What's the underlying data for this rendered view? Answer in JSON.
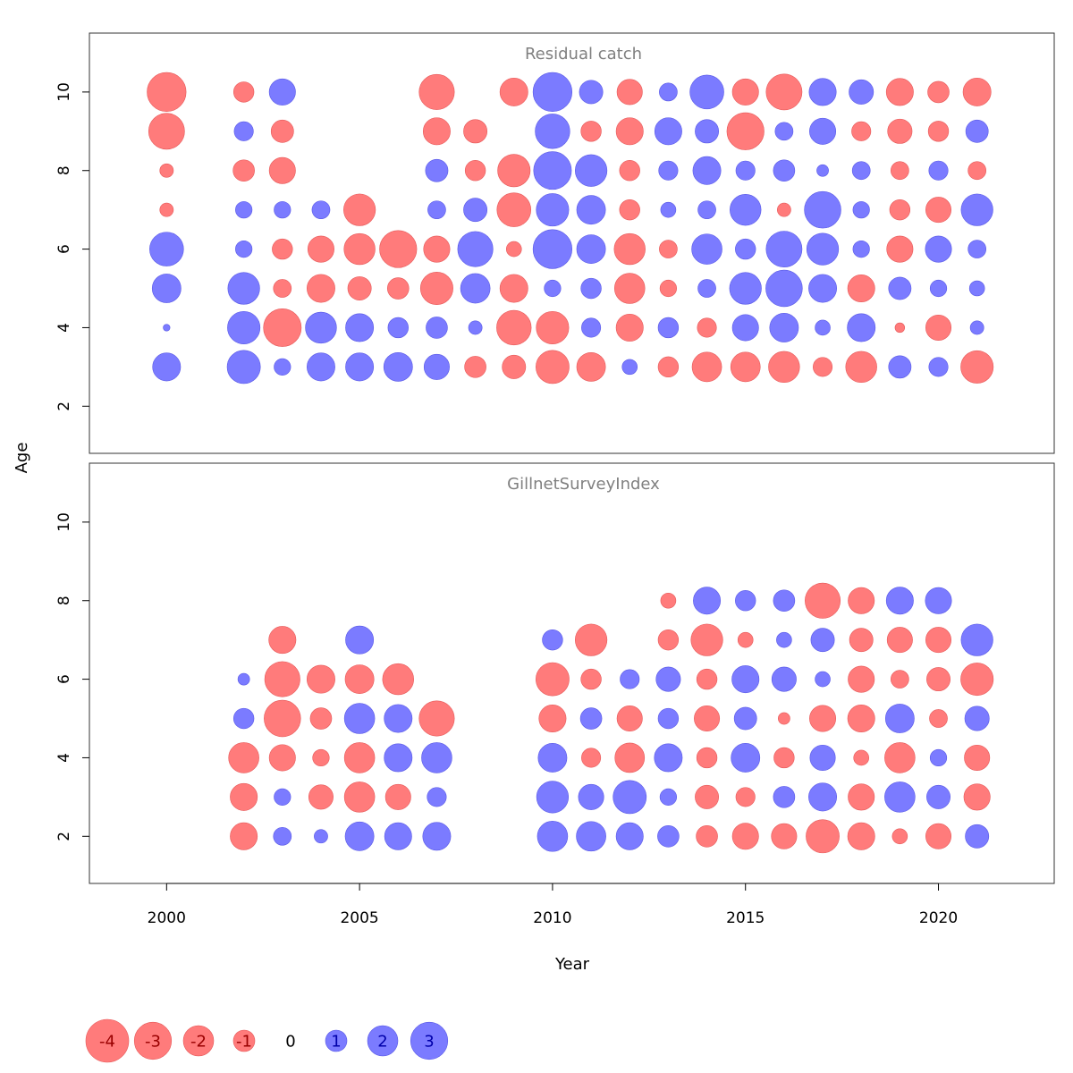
{
  "chart_data": {
    "type": "scatter",
    "variant": "bubble",
    "xlabel": "Year",
    "ylabel": "Age",
    "xlim": [
      1998,
      2023
    ],
    "ylim": [
      0.8,
      11.5
    ],
    "x_ticks": [
      2000,
      2005,
      2010,
      2015,
      2020
    ],
    "y_ticks": [
      2,
      4,
      6,
      8,
      10
    ],
    "colors": {
      "positive": "#7b7bff",
      "negative": "#ff7b7b"
    },
    "legend": {
      "placement": "bottom-left",
      "values": [
        -4,
        -3,
        -2,
        -1,
        0,
        1,
        2,
        3
      ],
      "labels": [
        "-4",
        "-3",
        "-2",
        "-1",
        "0",
        "1",
        "2",
        "3"
      ]
    },
    "panels": [
      {
        "title": "Residual catch",
        "ages": [
          10,
          9,
          8,
          7,
          6,
          5,
          4,
          3
        ],
        "years": [
          2000,
          2002,
          2003,
          2004,
          2005,
          2006,
          2007,
          2008,
          2009,
          2010,
          2011,
          2012,
          2013,
          2014,
          2015,
          2016,
          2017,
          2018,
          2019,
          2020,
          2021
        ],
        "residuals": [
          [
            -3.3,
            -0.9,
            1.5,
            null,
            null,
            null,
            -2.7,
            null,
            -1.7,
            3.3,
            1.2,
            -1.4,
            0.7,
            2.5,
            -1.5,
            -2.8,
            1.6,
            1.3,
            -1.6,
            -1.0,
            -1.7
          ],
          [
            -2.8,
            0.8,
            -1.1,
            null,
            null,
            null,
            -1.6,
            -1.2,
            null,
            2.6,
            -0.9,
            -1.6,
            1.6,
            1.2,
            -3.0,
            0.7,
            1.5,
            -0.8,
            -1.3,
            -0.9,
            1.1
          ],
          [
            -0.4,
            -1.0,
            -1.5,
            null,
            null,
            null,
            1.1,
            -0.9,
            -2.3,
            3.1,
            2.2,
            -0.9,
            0.8,
            1.7,
            0.8,
            1.0,
            0.3,
            0.7,
            -0.7,
            0.8,
            -0.7
          ],
          [
            -0.4,
            0.6,
            0.6,
            0.7,
            -2.2,
            null,
            0.7,
            1.2,
            -2.5,
            2.3,
            1.8,
            -0.9,
            0.5,
            0.7,
            2.1,
            -0.4,
            2.9,
            0.6,
            -0.9,
            -1.4,
            2.2
          ],
          [
            2.5,
            0.6,
            -0.9,
            -1.5,
            -2.1,
            -3.0,
            -1.5,
            2.7,
            -0.5,
            3.3,
            1.8,
            -2.1,
            -0.7,
            2.0,
            0.9,
            2.8,
            2.2,
            0.6,
            -1.5,
            1.5,
            0.7
          ],
          [
            1.8,
            2.2,
            -0.7,
            -1.7,
            -1.2,
            -1.0,
            -2.3,
            1.9,
            -1.7,
            0.6,
            0.9,
            -2.0,
            -0.6,
            0.7,
            2.2,
            2.9,
            1.7,
            -1.6,
            1.1,
            0.6,
            0.5
          ],
          [
            0.1,
            2.3,
            -3.1,
            2.1,
            1.7,
            0.9,
            1.0,
            0.4,
            -2.6,
            -2.3,
            0.8,
            -1.6,
            0.9,
            -0.8,
            1.5,
            1.8,
            0.5,
            1.7,
            -0.2,
            -1.4,
            0.4
          ],
          [
            1.7,
            2.4,
            0.6,
            1.7,
            1.7,
            1.8,
            1.4,
            -1.0,
            -1.2,
            -2.4,
            -1.8,
            0.5,
            -0.9,
            -1.9,
            -1.9,
            -2.1,
            -0.8,
            -2.1,
            1.1,
            0.8,
            -2.3
          ]
        ]
      },
      {
        "title": "GillnetSurveyIndex",
        "ages": [
          8,
          7,
          6,
          5,
          4,
          3,
          2
        ],
        "years": [
          2002,
          2003,
          2004,
          2005,
          2006,
          2007,
          2010,
          2011,
          2012,
          2013,
          2014,
          2015,
          2016,
          2017,
          2018,
          2019,
          2020,
          2021
        ],
        "residuals": [
          [
            null,
            null,
            null,
            null,
            null,
            null,
            null,
            null,
            null,
            -0.5,
            1.6,
            0.9,
            1.0,
            -2.7,
            -1.5,
            1.6,
            1.5,
            null
          ],
          [
            null,
            -1.6,
            null,
            1.7,
            null,
            null,
            0.9,
            -2.2,
            null,
            -0.9,
            -2.2,
            -0.5,
            0.5,
            1.2,
            -1.2,
            -1.4,
            -1.4,
            2.2
          ],
          [
            0.3,
            -2.7,
            -1.7,
            -1.8,
            -2.1,
            null,
            -2.4,
            -0.9,
            0.8,
            1.3,
            -0.9,
            1.6,
            1.3,
            0.5,
            -1.5,
            -0.7,
            -1.2,
            -2.3
          ],
          [
            0.9,
            -2.9,
            -1.0,
            2.0,
            1.7,
            -2.7,
            -1.6,
            1.0,
            -1.4,
            0.9,
            -1.4,
            1.1,
            -0.3,
            -1.5,
            -1.6,
            1.8,
            -0.7,
            1.3
          ],
          [
            -2.0,
            -1.5,
            -0.6,
            -2.0,
            1.7,
            2.0,
            1.8,
            -0.8,
            -1.9,
            1.7,
            -0.9,
            1.8,
            -0.9,
            1.4,
            -0.5,
            -2.0,
            0.6,
            -1.4
          ],
          [
            -1.6,
            0.6,
            -1.3,
            -2.0,
            -1.4,
            0.8,
            2.2,
            1.4,
            2.4,
            0.6,
            -1.2,
            -0.8,
            1.0,
            1.7,
            -1.5,
            2.0,
            1.2,
            -1.5
          ],
          [
            -1.6,
            0.7,
            0.4,
            1.8,
            1.6,
            1.7,
            2.0,
            1.9,
            1.6,
            1.0,
            -1.0,
            -1.5,
            -1.4,
            -2.4,
            -1.6,
            -0.5,
            -1.4,
            1.2
          ]
        ]
      }
    ]
  }
}
